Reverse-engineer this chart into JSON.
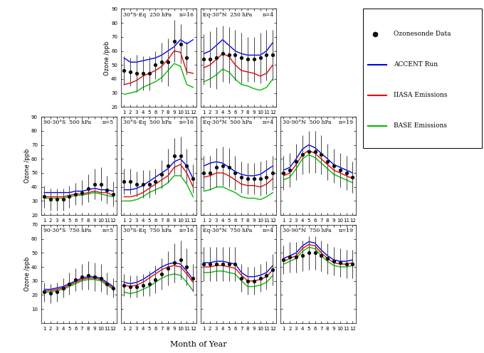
{
  "months": [
    1,
    2,
    3,
    4,
    5,
    6,
    7,
    8,
    9,
    10,
    11,
    12
  ],
  "panels": [
    {
      "row": 0,
      "col": 1,
      "title": "30°S-Eq  250 hPa",
      "n": "n=16",
      "ylim": [
        20,
        90
      ],
      "yticks": [
        20,
        30,
        40,
        50,
        60,
        70,
        80,
        90
      ],
      "obs": [
        46,
        45,
        44,
        44,
        44,
        50,
        52,
        52,
        67,
        65,
        55,
        null
      ],
      "obs_err": [
        10,
        10,
        13,
        12,
        12,
        10,
        14,
        17,
        15,
        14,
        12,
        null
      ],
      "accent": [
        55,
        52,
        52,
        53,
        54,
        55,
        57,
        60,
        63,
        68,
        65,
        68
      ],
      "iiasa": [
        36,
        37,
        39,
        42,
        44,
        46,
        49,
        54,
        60,
        59,
        45,
        44
      ],
      "base": [
        29,
        30,
        31,
        34,
        36,
        38,
        41,
        46,
        51,
        49,
        36,
        34
      ]
    },
    {
      "row": 0,
      "col": 2,
      "title": "Eq-30°N  250 hPa",
      "n": "n=4",
      "ylim": [
        20,
        90
      ],
      "yticks": [
        20,
        30,
        40,
        50,
        60,
        70,
        80,
        90
      ],
      "obs": [
        54,
        54,
        55,
        58,
        57,
        57,
        55,
        54,
        54,
        55,
        57,
        57
      ],
      "obs_err": [
        18,
        20,
        22,
        20,
        20,
        18,
        18,
        16,
        16,
        18,
        18,
        18
      ],
      "accent": [
        58,
        60,
        64,
        68,
        64,
        60,
        58,
        57,
        57,
        57,
        60,
        66
      ],
      "iiasa": [
        48,
        50,
        54,
        58,
        56,
        50,
        46,
        45,
        44,
        42,
        44,
        50
      ],
      "base": [
        38,
        40,
        43,
        47,
        45,
        40,
        36,
        35,
        33,
        32,
        34,
        40
      ]
    },
    {
      "row": 1,
      "col": 0,
      "title": "90-30°S  500 hPa",
      "n": "n=5",
      "ylim": [
        20,
        90
      ],
      "yticks": [
        20,
        30,
        40,
        50,
        60,
        70,
        80,
        90
      ],
      "obs": [
        33,
        31,
        31,
        31,
        33,
        35,
        36,
        39,
        42,
        42,
        38,
        35
      ],
      "obs_err": [
        8,
        8,
        8,
        8,
        8,
        8,
        9,
        10,
        11,
        12,
        10,
        9
      ],
      "accent": [
        36,
        36,
        36,
        36,
        36,
        37,
        37,
        38,
        39,
        38,
        38,
        37
      ],
      "iiasa": [
        33,
        33,
        33,
        33,
        34,
        35,
        35,
        36,
        37,
        36,
        36,
        34
      ],
      "base": [
        32,
        32,
        32,
        32,
        33,
        34,
        34,
        35,
        36,
        35,
        34,
        33
      ]
    },
    {
      "row": 1,
      "col": 1,
      "title": "30°S-Eq  500 hPa",
      "n": "n=16",
      "ylim": [
        20,
        90
      ],
      "yticks": [
        20,
        30,
        40,
        50,
        60,
        70,
        80,
        90
      ],
      "obs": [
        44,
        44,
        42,
        42,
        42,
        44,
        49,
        55,
        62,
        62,
        55,
        46
      ],
      "obs_err": [
        9,
        9,
        9,
        10,
        10,
        9,
        10,
        12,
        13,
        14,
        12,
        10
      ],
      "accent": [
        38,
        38,
        39,
        41,
        44,
        47,
        50,
        53,
        58,
        60,
        55,
        46
      ],
      "iiasa": [
        33,
        33,
        34,
        36,
        39,
        42,
        45,
        48,
        54,
        56,
        50,
        40
      ],
      "base": [
        30,
        30,
        31,
        33,
        36,
        38,
        40,
        43,
        48,
        48,
        42,
        33
      ]
    },
    {
      "row": 1,
      "col": 2,
      "title": "Eq-30°N  500 hPa",
      "n": "n=4",
      "ylim": [
        20,
        90
      ],
      "yticks": [
        20,
        30,
        40,
        50,
        60,
        70,
        80,
        90
      ],
      "obs": [
        50,
        50,
        54,
        55,
        54,
        50,
        47,
        46,
        46,
        46,
        47,
        50
      ],
      "obs_err": [
        12,
        12,
        14,
        14,
        14,
        12,
        11,
        11,
        11,
        12,
        12,
        12
      ],
      "accent": [
        55,
        57,
        58,
        57,
        54,
        51,
        49,
        48,
        48,
        49,
        52,
        55
      ],
      "iiasa": [
        47,
        48,
        50,
        50,
        48,
        45,
        42,
        41,
        41,
        40,
        42,
        46
      ],
      "base": [
        37,
        38,
        40,
        40,
        38,
        36,
        33,
        32,
        32,
        31,
        33,
        36
      ]
    },
    {
      "row": 1,
      "col": 3,
      "title": "30-90°N  500 hPa",
      "n": "n=19",
      "ylim": [
        20,
        90
      ],
      "yticks": [
        20,
        30,
        40,
        50,
        60,
        70,
        80,
        90
      ],
      "obs": [
        50,
        52,
        58,
        63,
        65,
        65,
        63,
        58,
        55,
        52,
        50,
        47
      ],
      "obs_err": [
        12,
        12,
        13,
        14,
        15,
        15,
        14,
        13,
        12,
        12,
        12,
        11
      ],
      "accent": [
        52,
        54,
        60,
        67,
        70,
        68,
        64,
        60,
        56,
        54,
        52,
        50
      ],
      "iiasa": [
        48,
        50,
        56,
        63,
        66,
        64,
        60,
        56,
        52,
        50,
        48,
        46
      ],
      "base": [
        45,
        47,
        53,
        60,
        63,
        61,
        57,
        53,
        49,
        47,
        45,
        43
      ]
    },
    {
      "row": 2,
      "col": 0,
      "title": "90-30°S  750 hPa",
      "n": "n=5",
      "ylim": [
        0,
        70
      ],
      "yticks": [
        10,
        20,
        30,
        40,
        50,
        60,
        70
      ],
      "obs": [
        22,
        21,
        22,
        25,
        28,
        31,
        33,
        34,
        33,
        32,
        28,
        25
      ],
      "obs_err": [
        7,
        7,
        7,
        7,
        8,
        8,
        9,
        10,
        10,
        10,
        8,
        7
      ],
      "accent": [
        24,
        24,
        25,
        26,
        28,
        30,
        32,
        33,
        33,
        32,
        29,
        26
      ],
      "iiasa": [
        23,
        23,
        24,
        25,
        27,
        29,
        31,
        32,
        32,
        31,
        28,
        25
      ],
      "base": [
        22,
        22,
        23,
        24,
        26,
        28,
        30,
        31,
        31,
        30,
        27,
        24
      ]
    },
    {
      "row": 2,
      "col": 1,
      "title": "30°S-Eq  750 hPa",
      "n": "n=16",
      "ylim": [
        0,
        70
      ],
      "yticks": [
        10,
        20,
        30,
        40,
        50,
        60,
        70
      ],
      "obs": [
        27,
        26,
        26,
        27,
        28,
        31,
        35,
        39,
        43,
        45,
        40,
        32
      ],
      "obs_err": [
        8,
        8,
        8,
        8,
        9,
        10,
        11,
        12,
        14,
        14,
        13,
        10
      ],
      "accent": [
        29,
        28,
        29,
        31,
        34,
        37,
        40,
        42,
        43,
        42,
        37,
        31
      ],
      "iiasa": [
        27,
        26,
        27,
        29,
        32,
        35,
        38,
        40,
        41,
        40,
        35,
        29
      ],
      "base": [
        22,
        21,
        22,
        24,
        26,
        29,
        32,
        34,
        35,
        34,
        29,
        23
      ]
    },
    {
      "row": 2,
      "col": 2,
      "title": "Eq-30°N  750 hPa",
      "n": "n=4",
      "ylim": [
        0,
        70
      ],
      "yticks": [
        10,
        20,
        30,
        40,
        50,
        60,
        70
      ],
      "obs": [
        42,
        42,
        42,
        42,
        42,
        42,
        32,
        30,
        30,
        32,
        34,
        38
      ],
      "obs_err": [
        12,
        12,
        12,
        12,
        12,
        12,
        10,
        10,
        10,
        10,
        10,
        11
      ],
      "accent": [
        43,
        43,
        44,
        44,
        43,
        42,
        36,
        33,
        33,
        34,
        36,
        41
      ],
      "iiasa": [
        40,
        40,
        41,
        41,
        40,
        39,
        34,
        30,
        30,
        31,
        33,
        38
      ],
      "base": [
        36,
        36,
        37,
        37,
        36,
        35,
        30,
        26,
        26,
        27,
        29,
        34
      ]
    },
    {
      "row": 2,
      "col": 3,
      "title": "30-90°N  750 hPa",
      "n": "n=19",
      "ylim": [
        0,
        70
      ],
      "yticks": [
        10,
        20,
        30,
        40,
        50,
        60,
        70
      ],
      "obs": [
        45,
        47,
        47,
        48,
        50,
        50,
        48,
        46,
        44,
        43,
        42,
        42
      ],
      "obs_err": [
        10,
        11,
        11,
        11,
        12,
        12,
        11,
        11,
        10,
        10,
        10,
        10
      ],
      "accent": [
        46,
        48,
        50,
        55,
        58,
        57,
        52,
        48,
        45,
        44,
        44,
        45
      ],
      "iiasa": [
        44,
        46,
        48,
        53,
        56,
        55,
        50,
        46,
        43,
        42,
        42,
        43
      ],
      "base": [
        42,
        44,
        46,
        51,
        54,
        53,
        48,
        44,
        41,
        40,
        40,
        41
      ]
    }
  ],
  "legend": {
    "obs_label": "Ozonesonde Data",
    "accent_label": "ACCENT Run",
    "iiasa_label": "IIASA Emissions",
    "base_label": "BASE Emissions"
  },
  "colors": {
    "accent": "#0000ee",
    "iiasa": "#ee0000",
    "base": "#00bb00",
    "obs": "#111111"
  },
  "xlabel": "Month of Year",
  "ylabel": "Ozone /ppb"
}
